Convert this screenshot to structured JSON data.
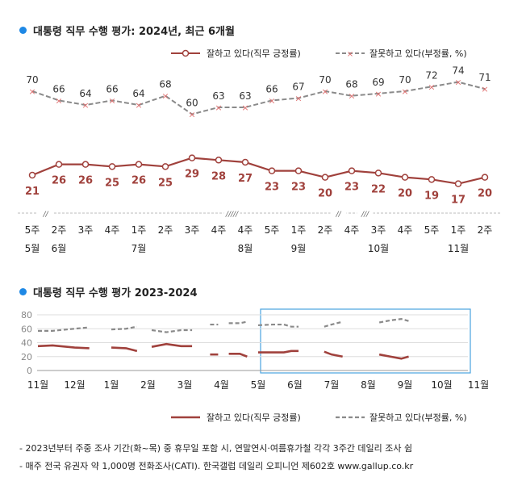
{
  "colors": {
    "approve": "#a0413c",
    "disapprove": "#8a8a8a",
    "dot": "#1e88e5",
    "frame": "#4aa3df"
  },
  "chart1": {
    "title": "대통령 직무 수행 평가: 2024년, 최근 6개월",
    "legend": [
      {
        "name": "잘하고 있다(직무 긍정률)",
        "color": "#a0413c",
        "marker": "circle"
      },
      {
        "name": "잘못하고 있다(부정률, %)",
        "color": "#8a8a8a",
        "marker": "x"
      }
    ],
    "week_labels": [
      "5주",
      "2주",
      "3주",
      "4주",
      "1주",
      "2주",
      "3주",
      "4주",
      "4주",
      "5주",
      "1주",
      "2주",
      "4주",
      "3주",
      "4주",
      "5주",
      "1주",
      "2주"
    ],
    "month_labels": [
      {
        "index": 0,
        "label": "5월"
      },
      {
        "index": 1,
        "label": "6월"
      },
      {
        "index": 4,
        "label": "7월"
      },
      {
        "index": 8,
        "label": "8월"
      },
      {
        "index": 10,
        "label": "9월"
      },
      {
        "index": 13,
        "label": "10월"
      },
      {
        "index": 16,
        "label": "11월"
      }
    ],
    "breaks": [
      {
        "after": 0,
        "label": "//"
      },
      {
        "after": 7,
        "label": "/////"
      },
      {
        "after": 11,
        "label": "//"
      },
      {
        "after": 12,
        "label": "///"
      }
    ]
  },
  "chart_data": [
    {
      "type": "line",
      "title": "대통령 직무 수행 평가: 2024년, 최근 6개월",
      "x": [
        "5월 5주",
        "6월 2주",
        "3주",
        "4주",
        "7월 1주",
        "2주",
        "3주",
        "4주",
        "8월 4주",
        "5주",
        "9월 1주",
        "2주",
        "4주",
        "10월 3주",
        "4주",
        "5주",
        "11월 1주",
        "2주"
      ],
      "series": [
        {
          "name": "잘하고 있다(직무 긍정률)",
          "values": [
            21,
            26,
            26,
            25,
            26,
            25,
            29,
            28,
            27,
            23,
            23,
            20,
            23,
            22,
            20,
            19,
            17,
            20
          ]
        },
        {
          "name": "잘못하고 있다(부정률, %)",
          "values": [
            70,
            66,
            64,
            66,
            64,
            68,
            60,
            63,
            63,
            66,
            67,
            70,
            68,
            69,
            70,
            72,
            74,
            71
          ]
        }
      ],
      "ylim": [
        0,
        100
      ],
      "grid": false,
      "legend_position": "top-right"
    },
    {
      "type": "line",
      "title": "대통령 직무 수행 평가 2023-2024",
      "x_tick_labels": [
        "11월",
        "12월",
        "1월",
        "2월",
        "3월",
        "4월",
        "5월",
        "6월",
        "7월",
        "8월",
        "9월",
        "10월",
        "11월"
      ],
      "y_ticks": [
        0,
        20,
        40,
        60,
        80
      ],
      "ylim": [
        0,
        80
      ],
      "grid": true,
      "legend_position": "bottom",
      "highlight_box": "6월–11월",
      "series": [
        {
          "name": "잘하고 있다(직무 긍정률)",
          "segments": [
            [
              [
                0.0,
                35
              ],
              [
                0.4,
                36
              ],
              [
                1.0,
                33
              ],
              [
                1.4,
                32
              ]
            ],
            [
              [
                2.0,
                33
              ],
              [
                2.4,
                32
              ],
              [
                2.7,
                28
              ]
            ],
            [
              [
                3.1,
                34
              ],
              [
                3.5,
                38
              ],
              [
                3.9,
                35
              ],
              [
                4.2,
                35
              ]
            ],
            [
              [
                4.8,
                23
              ]
            ],
            [
              [
                5.2,
                24
              ],
              [
                5.5,
                24
              ],
              [
                5.7,
                20
              ]
            ],
            [
              [
                6.0,
                26
              ],
              [
                6.4,
                26
              ],
              [
                6.7,
                26
              ],
              [
                6.9,
                28
              ],
              [
                7.1,
                28
              ]
            ],
            [
              [
                7.8,
                27
              ],
              [
                8.0,
                23
              ],
              [
                8.3,
                20
              ]
            ],
            [
              [
                9.3,
                23
              ],
              [
                9.6,
                20
              ],
              [
                9.9,
                17
              ],
              [
                10.1,
                20
              ]
            ]
          ]
        },
        {
          "name": "잘못하고 있다(부정률, %)",
          "segments": [
            [
              [
                0.0,
                57
              ],
              [
                0.4,
                57
              ],
              [
                1.0,
                60
              ],
              [
                1.4,
                62
              ]
            ],
            [
              [
                2.0,
                59
              ],
              [
                2.4,
                60
              ],
              [
                2.7,
                63
              ]
            ],
            [
              [
                3.1,
                58
              ],
              [
                3.5,
                55
              ],
              [
                3.9,
                58
              ],
              [
                4.2,
                58
              ]
            ],
            [
              [
                4.8,
                66
              ]
            ],
            [
              [
                5.2,
                68
              ],
              [
                5.5,
                68
              ],
              [
                5.7,
                70
              ]
            ],
            [
              [
                6.0,
                65
              ],
              [
                6.4,
                66
              ],
              [
                6.7,
                66
              ],
              [
                6.9,
                63
              ],
              [
                7.1,
                63
              ]
            ],
            [
              [
                7.8,
                63
              ],
              [
                8.0,
                66
              ],
              [
                8.3,
                70
              ]
            ],
            [
              [
                9.3,
                69
              ],
              [
                9.6,
                72
              ],
              [
                9.9,
                74
              ],
              [
                10.1,
                71
              ]
            ]
          ]
        }
      ]
    }
  ],
  "chart2": {
    "title": "대통령 직무 수행 평가 2023-2024",
    "legend": [
      {
        "name": "잘하고 있다(직무 긍정률)",
        "color": "#a0413c"
      },
      {
        "name": "잘못하고 있다(부정률, %)",
        "color": "#8a8a8a"
      }
    ]
  },
  "notes": [
    "- 2023년부터 주중 조사 기간(화~목) 중 휴무일 포함 시, 연말연시·여름휴가철 각각 3주간 데일리 조사 쉼",
    "- 매주 전국 유권자 약 1,000명 전화조사(CATI). 한국갤럽 데일리 오피니언 제602호 www.gallup.co.kr"
  ]
}
